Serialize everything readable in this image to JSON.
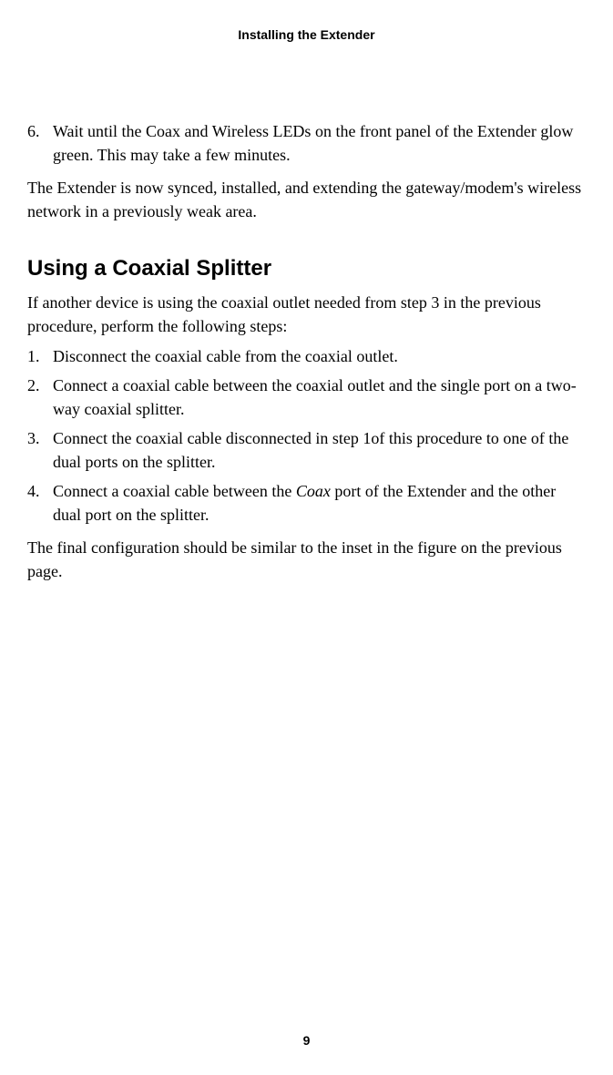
{
  "header": {
    "title": "Installing the Extender"
  },
  "step6": {
    "number": "6.",
    "text": "Wait until the Coax and Wireless LEDs on the front panel of the Extender glow green. This may take a few minutes."
  },
  "conclusion": "The Extender is now synced, installed, and extending the gateway/modem's wireless network in a previously weak area.",
  "section": {
    "heading": "Using a Coaxial Splitter",
    "intro": "If another device is using the coaxial outlet needed from step 3 in the previous procedure, perform the following steps:",
    "steps": {
      "s1": {
        "number": "1.",
        "text": "Disconnect the coaxial cable from the coaxial outlet."
      },
      "s2": {
        "number": "2.",
        "text": "Connect a coaxial cable between the coaxial outlet and the single port on a two-way coaxial splitter."
      },
      "s3": {
        "number": "3.",
        "text": "Connect the coaxial cable disconnected in step 1of this procedure to one of the dual ports on the splitter."
      },
      "s4": {
        "number": "4.",
        "text_before": "Connect a coaxial cable between the ",
        "italic": "Coax",
        "text_after": " port of the Extender and the other dual port on the splitter."
      }
    },
    "closing": "The final configuration should be similar to the inset in the figure on the previous page."
  },
  "pageNumber": "9"
}
